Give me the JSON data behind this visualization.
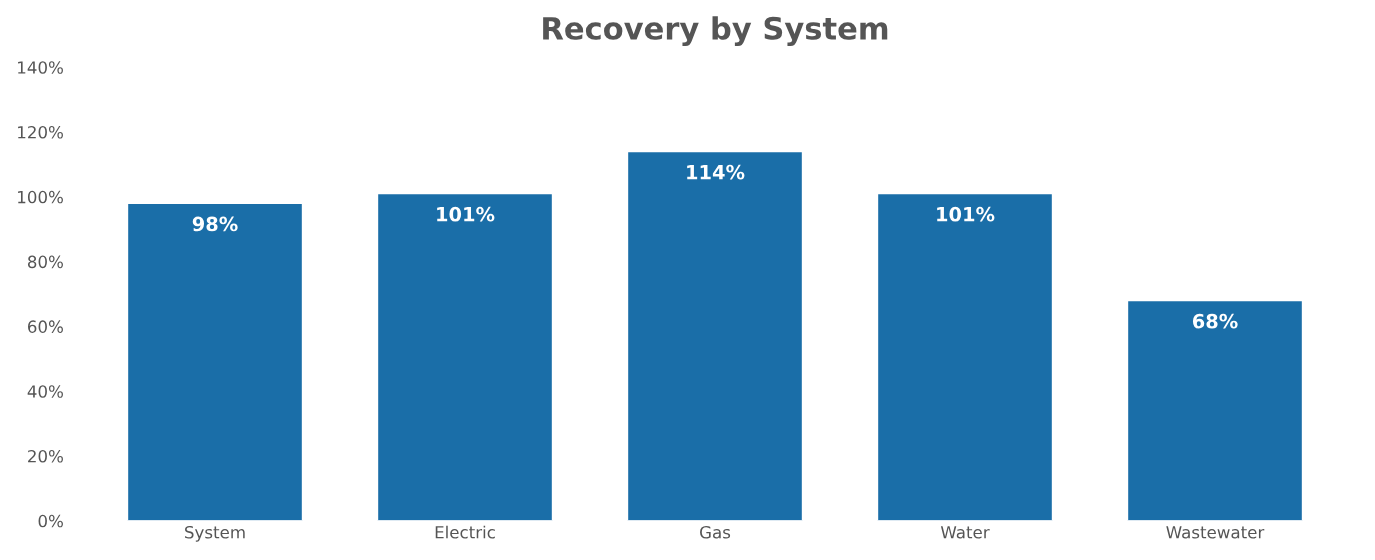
{
  "chart_data": {
    "type": "bar",
    "title": "Recovery by System",
    "categories": [
      "System",
      "Electric",
      "Gas",
      "Water",
      "Wastewater"
    ],
    "values": [
      98,
      101,
      114,
      101,
      68
    ],
    "value_labels": [
      "98%",
      "101%",
      "114%",
      "101%",
      "68%"
    ],
    "color": "#1a6ea8",
    "ylim": [
      0,
      140
    ],
    "yticks": [
      {
        "value": 0,
        "label": "0%"
      },
      {
        "value": 20,
        "label": "20%"
      },
      {
        "value": 40,
        "label": "40%"
      },
      {
        "value": 60,
        "label": "60%"
      },
      {
        "value": 80,
        "label": "80%"
      },
      {
        "value": 100,
        "label": "100%"
      },
      {
        "value": 120,
        "label": "120%"
      },
      {
        "value": 140,
        "label": "140%"
      }
    ],
    "grid": false,
    "legend": false
  }
}
